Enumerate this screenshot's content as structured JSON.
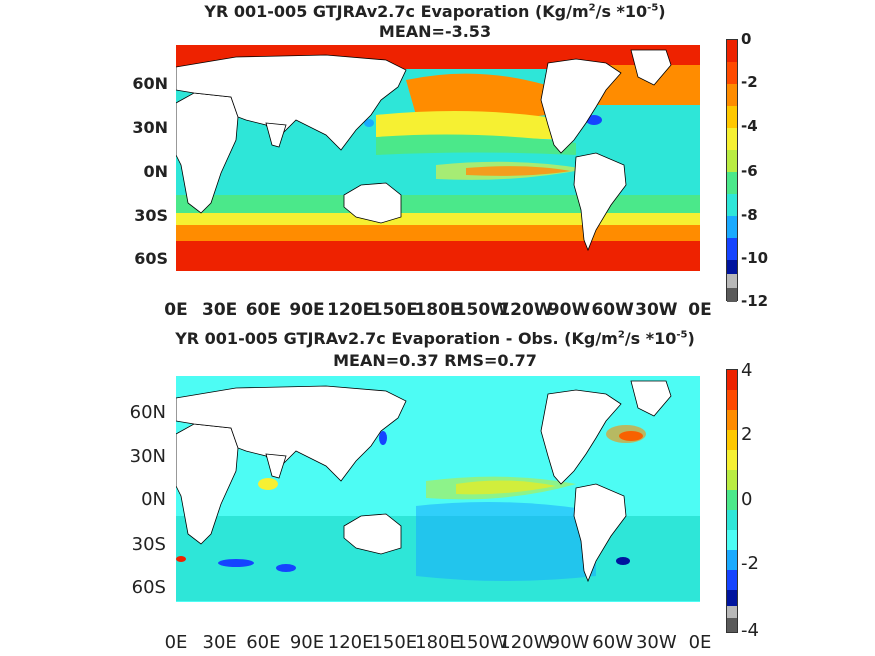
{
  "panels": [
    {
      "title_prefix": "YR 001-005 GTJRAv2.7c  Evaporation (Kg/m",
      "title_exp1": "2",
      "title_mid": "/s *10",
      "title_exp2": "-5",
      "title_suffix": ")",
      "subtitle": "MEAN=-3.53",
      "field": "evaporation",
      "lat_ticks": [
        "60N",
        "30N",
        "0N",
        "30S",
        "60S"
      ],
      "lon_ticks": [
        "0E",
        "30E",
        "60E",
        "90E",
        "120E",
        "150E",
        "180E",
        "150W",
        "120W",
        "90W",
        "60W",
        "30W",
        "0E"
      ],
      "colorbar_ticks": [
        "0",
        "-2",
        "-4",
        "-6",
        "-8",
        "-10",
        "-12"
      ],
      "colorbar_range": [
        -12,
        0
      ]
    },
    {
      "title_prefix": "YR 001-005 GTJRAv2.7c Evaporation - Obs. (Kg/m",
      "title_exp1": "2",
      "title_mid": "/s *10",
      "title_exp2": "-5",
      "title_suffix": ")",
      "subtitle": "MEAN=0.37   RMS=0.77",
      "field": "evaporation minus observations",
      "lat_ticks": [
        "60N",
        "30N",
        "0N",
        "30S",
        "60S"
      ],
      "lon_ticks": [
        "0E",
        "30E",
        "60E",
        "90E",
        "120E",
        "150E",
        "180E",
        "150W",
        "120W",
        "90W",
        "60W",
        "30W",
        "0E"
      ],
      "colorbar_ticks": [
        "4",
        "2",
        "0",
        "-2",
        "-4"
      ],
      "colorbar_range": [
        -4,
        4
      ]
    }
  ],
  "colors": {
    "red": "#ee2200",
    "orange": "#ff8c00",
    "yellow": "#f6f032",
    "yellowgreen": "#b9ec43",
    "green": "#4be88a",
    "cyan": "#2ee6d8",
    "lightcyan": "#4dfcf4",
    "skyblue": "#1aaaff",
    "blue": "#1544ff",
    "navy": "#00149e",
    "gray": "#b8b8b8",
    "darkgray": "#5a5a5a",
    "land": "#ffffff"
  }
}
